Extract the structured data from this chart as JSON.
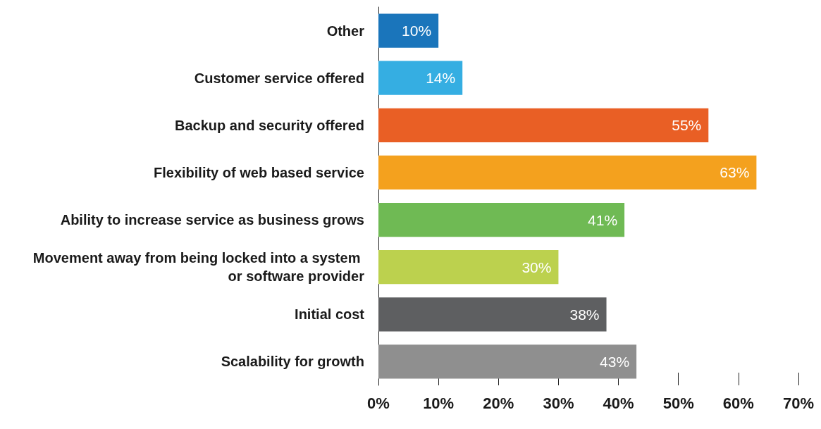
{
  "chart_data": {
    "type": "bar",
    "orientation": "horizontal",
    "categories": [
      "Other",
      "Customer service offered",
      "Backup and security offered",
      "Flexibility of web based service",
      "Ability to increase service as business grows",
      "Movement away from being locked into a system or software provider",
      "Initial cost",
      "Scalability for growth"
    ],
    "values": [
      10,
      14,
      55,
      63,
      41,
      30,
      38,
      43
    ],
    "colors": [
      "#1a75bb",
      "#35aee2",
      "#e95f25",
      "#f4a11e",
      "#6fba54",
      "#bcd14e",
      "#5e5f61",
      "#8f8f8f"
    ],
    "value_labels": [
      "10%",
      "14%",
      "55%",
      "63%",
      "41%",
      "30%",
      "38%",
      "43%"
    ],
    "xlim": [
      0,
      70
    ],
    "xticks": [
      {
        "value": 0,
        "label": "0%"
      },
      {
        "value": 10,
        "label": "10%"
      },
      {
        "value": 20,
        "label": "20%"
      },
      {
        "value": 30,
        "label": "30%"
      },
      {
        "value": 40,
        "label": "40%"
      },
      {
        "value": 50,
        "label": "50%"
      },
      {
        "value": 60,
        "label": "60%"
      },
      {
        "value": 70,
        "label": "70%"
      }
    ],
    "grid": false
  }
}
